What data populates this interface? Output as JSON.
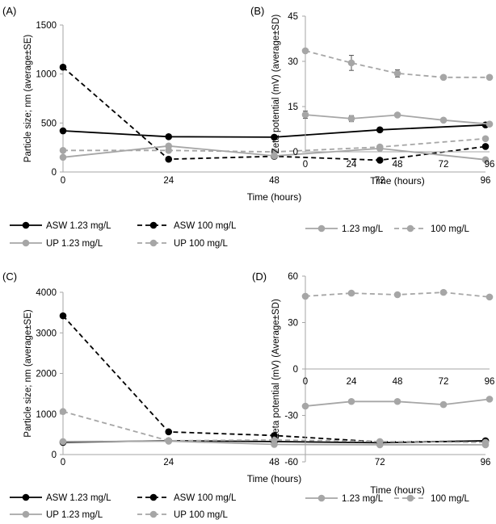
{
  "chart_data": [
    {
      "panel": "(A)",
      "type": "line",
      "xlabel": "Time (hours)",
      "ylabel": "Particle size; nm (average±SE)",
      "x": [
        0,
        24,
        48,
        72,
        96
      ],
      "xticks": [
        "0",
        "24",
        "48",
        "72",
        "96"
      ],
      "ylim": [
        0,
        1500
      ],
      "yticks": [
        0,
        500,
        1000,
        1500
      ],
      "series": [
        {
          "name": "ASW 1.23 mg/L",
          "color": "#000000",
          "dashed": false,
          "values": [
            420,
            360,
            355,
            430,
            480
          ]
        },
        {
          "name": "ASW 100 mg/L",
          "color": "#000000",
          "dashed": true,
          "values": [
            1070,
            130,
            160,
            120,
            260
          ]
        },
        {
          "name": "UP 1.23 mg/L",
          "color": "#a6a6a6",
          "dashed": false,
          "values": [
            150,
            265,
            165,
            240,
            125
          ]
        },
        {
          "name": "UP 100 mg/L",
          "color": "#a6a6a6",
          "dashed": true,
          "values": [
            220,
            220,
            205,
            255,
            340
          ]
        }
      ]
    },
    {
      "panel": "(B)",
      "type": "line",
      "xlabel": "Time (hours)",
      "ylabel": "Zeta potential (mV) (average±SD)",
      "x": [
        0,
        24,
        48,
        72,
        96
      ],
      "xticks": [
        "0",
        "24",
        "48",
        "72",
        "96"
      ],
      "ylim": [
        0,
        45
      ],
      "yticks": [
        0,
        15,
        30,
        45
      ],
      "series": [
        {
          "name": "1.23 mg/L",
          "color": "#a6a6a6",
          "dashed": false,
          "values": [
            12.3,
            11.0,
            12.2,
            10.5,
            9.2
          ],
          "errors": [
            1.2,
            1.0,
            0.6,
            0.4,
            0.3
          ]
        },
        {
          "name": "100 mg/L",
          "color": "#a6a6a6",
          "dashed": true,
          "values": [
            33.5,
            29.5,
            26.0,
            24.7,
            24.7
          ],
          "errors": [
            0.3,
            2.5,
            1.2,
            0.3,
            0.3
          ]
        }
      ]
    },
    {
      "panel": "(C)",
      "type": "line",
      "xlabel": "Time (hours)",
      "ylabel": "Particle size; nm (average±SE)",
      "x": [
        0,
        24,
        48,
        72,
        96
      ],
      "xticks": [
        "0",
        "24",
        "48",
        "72",
        "96"
      ],
      "ylim": [
        0,
        4000
      ],
      "yticks": [
        0,
        1000,
        2000,
        3000,
        4000
      ],
      "series": [
        {
          "name": "ASW 1.23 mg/L",
          "color": "#000000",
          "dashed": false,
          "values": [
            300,
            340,
            320,
            290,
            340
          ]
        },
        {
          "name": "ASW 100 mg/L",
          "color": "#000000",
          "dashed": true,
          "values": [
            3420,
            560,
            470,
            310,
            330
          ]
        },
        {
          "name": "UP 1.23 mg/L",
          "color": "#a6a6a6",
          "dashed": false,
          "values": [
            320,
            330,
            250,
            240,
            240
          ]
        },
        {
          "name": "UP 100 mg/L",
          "color": "#a6a6a6",
          "dashed": true,
          "values": [
            1060,
            340,
            360,
            320,
            300
          ]
        }
      ]
    },
    {
      "panel": "(D)",
      "type": "line",
      "xlabel": "Time (hours)",
      "ylabel": "Zeta potential (mV) (Average±SD)",
      "x": [
        0,
        24,
        48,
        72,
        96
      ],
      "xticks": [
        "0",
        "24",
        "48",
        "72",
        "96"
      ],
      "ylim": [
        -60,
        60
      ],
      "yticks": [
        -60,
        -30,
        0,
        30,
        60
      ],
      "series": [
        {
          "name": "1.23 mg/L",
          "color": "#a6a6a6",
          "dashed": false,
          "values": [
            -24,
            -21,
            -21,
            -23,
            -19.5
          ]
        },
        {
          "name": "100 mg/L",
          "color": "#a6a6a6",
          "dashed": true,
          "values": [
            47,
            49,
            48,
            49.5,
            46.5
          ]
        }
      ]
    }
  ]
}
